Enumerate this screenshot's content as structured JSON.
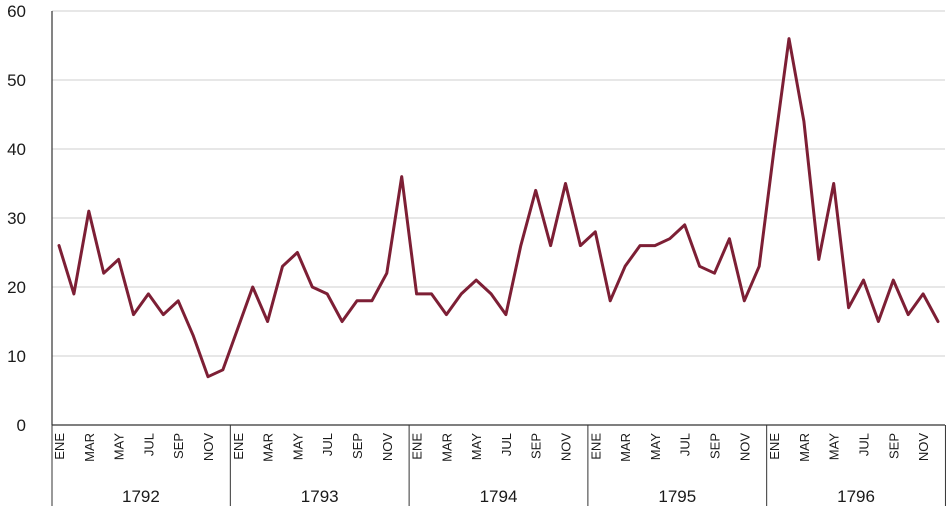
{
  "chart_data": {
    "type": "line",
    "title": "",
    "xlabel": "",
    "ylabel": "",
    "ylim": [
      0,
      60
    ],
    "y_ticks": [
      "0",
      "10",
      "20",
      "30",
      "40",
      "50",
      "60"
    ],
    "grid": "horizontal",
    "line_color": "#7d1f35",
    "month_labels": [
      "ENE",
      "MAR",
      "MAY",
      "JUL",
      "SEP",
      "NOV"
    ],
    "years": [
      "1792",
      "1793",
      "1794",
      "1795",
      "1796"
    ],
    "series": [
      {
        "values": [
          26,
          19,
          31,
          22,
          24,
          16,
          19,
          16,
          18,
          13,
          7,
          8,
          14,
          20,
          15,
          23,
          25,
          20,
          19,
          15,
          18,
          18,
          22,
          36,
          19,
          19,
          16,
          19,
          21,
          19,
          16,
          26,
          34,
          26,
          35,
          26,
          28,
          18,
          23,
          26,
          26,
          27,
          29,
          23,
          22,
          27,
          18,
          23,
          40,
          56,
          44,
          24,
          35,
          17,
          21,
          15,
          21,
          16,
          19,
          15
        ]
      }
    ]
  }
}
